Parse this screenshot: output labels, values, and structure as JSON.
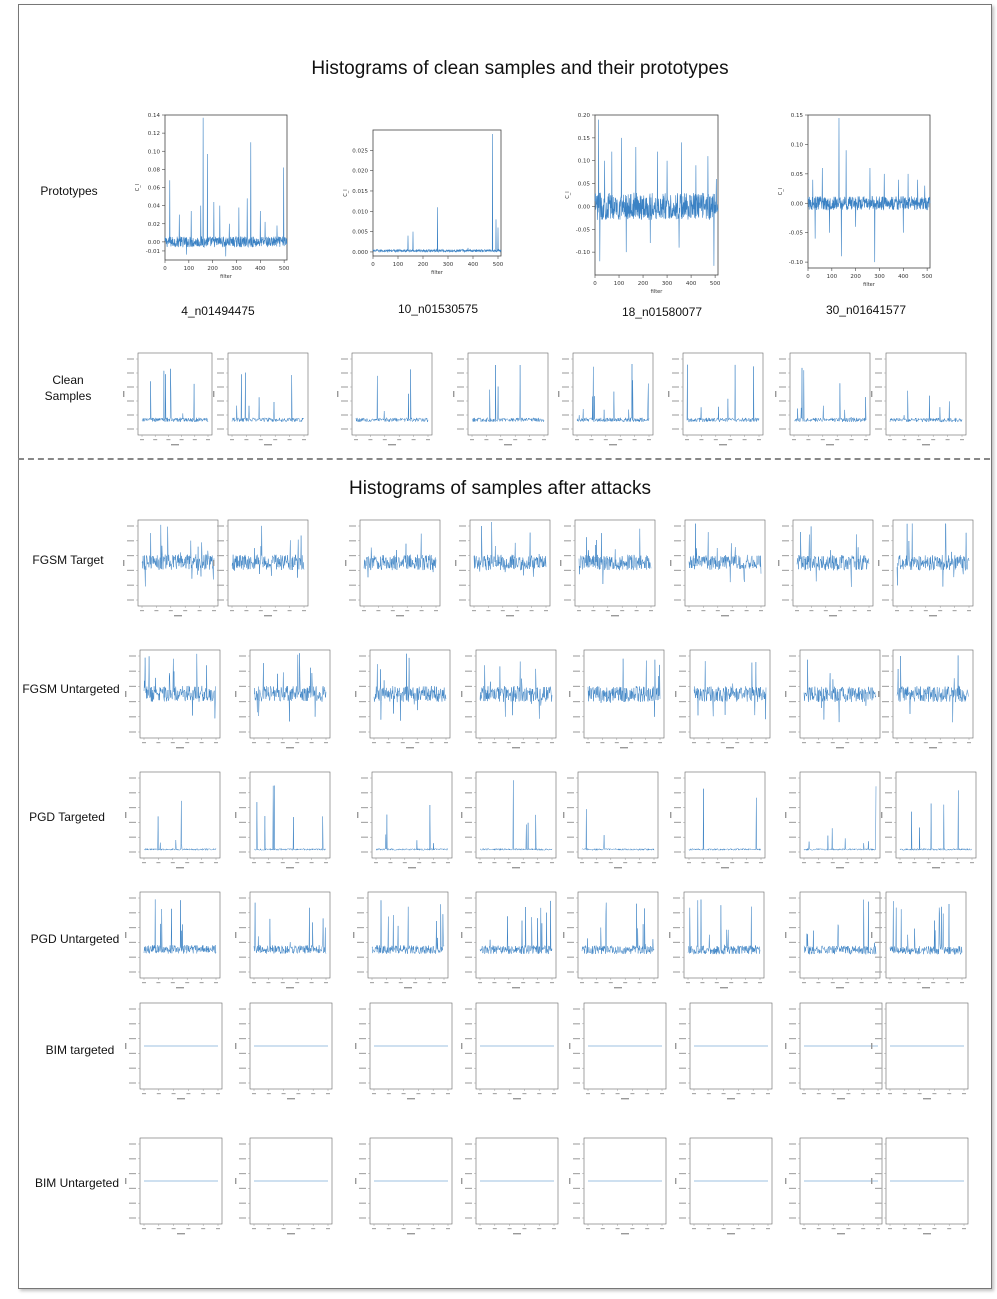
{
  "titles": {
    "top": "Histograms of clean samples and their prototypes",
    "bottom": "Histograms of samples after attacks"
  },
  "row_labels": {
    "prototypes": "Prototypes",
    "clean_samples": "Clean Samples",
    "fgsm_target": "FGSM Target",
    "fgsm_untargeted": "FGSM Untargeted",
    "pgd_targeted": "PGD Targeted",
    "pgd_untargeted": "PGD Untargeted",
    "bim_targeted": "BIM targeted",
    "bim_untargeted": "BIM Untargeted"
  },
  "captions": [
    "4_n01494475",
    "10_n01530575",
    "18_n01580077",
    "30_n01641577"
  ],
  "colors": {
    "line": "#3b82c4",
    "axis": "#444444",
    "frame": "#777777"
  },
  "chart_data": [
    {
      "type": "line",
      "name": "prototype-4_n01494475",
      "xlabel": "filter",
      "ylabel": "C_l",
      "xlim": [
        0,
        512
      ],
      "ylim": [
        -0.02,
        0.14
      ],
      "xticks": [
        0,
        100,
        200,
        300,
        400,
        500
      ],
      "yticks": [
        -0.01,
        0.0,
        0.02,
        0.04,
        0.06,
        0.08,
        0.1,
        0.12,
        0.14
      ],
      "yticklabels": [
        "-0.01",
        "0.00",
        "0.02",
        "0.04",
        "0.06",
        "0.08",
        "0.10",
        "0.12",
        "0.14"
      ],
      "baseline": 0.0,
      "noise": 0.006,
      "spikes": [
        [
          20,
          0.068
        ],
        [
          60,
          0.03
        ],
        [
          110,
          0.034
        ],
        [
          150,
          0.04
        ],
        [
          160,
          0.137
        ],
        [
          178,
          0.097
        ],
        [
          205,
          0.044
        ],
        [
          230,
          0.04
        ],
        [
          270,
          0.02
        ],
        [
          310,
          0.038
        ],
        [
          345,
          0.048
        ],
        [
          360,
          0.11
        ],
        [
          400,
          0.034
        ],
        [
          420,
          0.022
        ],
        [
          470,
          0.018
        ],
        [
          498,
          0.082
        ],
        [
          90,
          -0.014
        ],
        [
          255,
          -0.016
        ]
      ]
    },
    {
      "type": "line",
      "name": "prototype-10_n01530575",
      "xlabel": "filter",
      "ylabel": "C_l",
      "xlim": [
        0,
        512
      ],
      "ylim": [
        -0.001,
        0.03
      ],
      "xticks": [
        0,
        100,
        200,
        300,
        400,
        500
      ],
      "yticks": [
        0.0,
        0.005,
        0.01,
        0.015,
        0.02,
        0.025
      ],
      "yticklabels": [
        "0.000",
        "0.005",
        "0.010",
        "0.015",
        "0.020",
        "0.025"
      ],
      "baseline": 0.0003,
      "noise": 0.0003,
      "spikes": [
        [
          140,
          0.004
        ],
        [
          160,
          0.005
        ],
        [
          258,
          0.011
        ],
        [
          380,
          0.001
        ],
        [
          478,
          0.029
        ],
        [
          492,
          0.008
        ],
        [
          500,
          0.006
        ]
      ]
    },
    {
      "type": "line",
      "name": "prototype-18_n01580077",
      "xlabel": "filter",
      "ylabel": "C_l",
      "xlim": [
        0,
        512
      ],
      "ylim": [
        -0.15,
        0.2
      ],
      "xticks": [
        0,
        100,
        200,
        300,
        400,
        500
      ],
      "yticks": [
        -0.1,
        -0.05,
        0.0,
        0.05,
        0.1,
        0.15,
        0.2
      ],
      "yticklabels": [
        "-0.10",
        "-0.05",
        "0.00",
        "0.05",
        "0.10",
        "0.15",
        "0.20"
      ],
      "baseline": 0.0,
      "noise": 0.03,
      "spikes": [
        [
          15,
          0.19
        ],
        [
          40,
          0.1
        ],
        [
          70,
          0.12
        ],
        [
          110,
          0.15
        ],
        [
          170,
          0.13
        ],
        [
          260,
          0.12
        ],
        [
          300,
          0.1
        ],
        [
          360,
          0.14
        ],
        [
          420,
          0.09
        ],
        [
          470,
          0.11
        ],
        [
          20,
          -0.12
        ],
        [
          130,
          -0.1
        ],
        [
          230,
          -0.08
        ],
        [
          350,
          -0.09
        ],
        [
          495,
          -0.13
        ],
        [
          505,
          0.06
        ]
      ]
    },
    {
      "type": "line",
      "name": "prototype-30_n01641577",
      "xlabel": "filter",
      "ylabel": "C_l",
      "xlim": [
        0,
        512
      ],
      "ylim": [
        -0.11,
        0.15
      ],
      "xticks": [
        0,
        100,
        200,
        300,
        400,
        500
      ],
      "yticks": [
        -0.1,
        -0.05,
        0.0,
        0.05,
        0.1,
        0.15
      ],
      "yticklabels": [
        "-0.10",
        "-0.05",
        "0.00",
        "0.05",
        "0.10",
        "0.15"
      ],
      "baseline": 0.0,
      "noise": 0.012,
      "spikes": [
        [
          20,
          0.04
        ],
        [
          60,
          0.06
        ],
        [
          130,
          0.145
        ],
        [
          160,
          0.09
        ],
        [
          200,
          0.05
        ],
        [
          260,
          0.06
        ],
        [
          320,
          0.05
        ],
        [
          380,
          0.04
        ],
        [
          420,
          0.05
        ],
        [
          460,
          0.04
        ],
        [
          490,
          0.03
        ],
        [
          30,
          -0.06
        ],
        [
          90,
          -0.05
        ],
        [
          140,
          -0.09
        ],
        [
          200,
          -0.04
        ],
        [
          280,
          -0.1
        ],
        [
          400,
          -0.05
        ]
      ]
    }
  ]
}
